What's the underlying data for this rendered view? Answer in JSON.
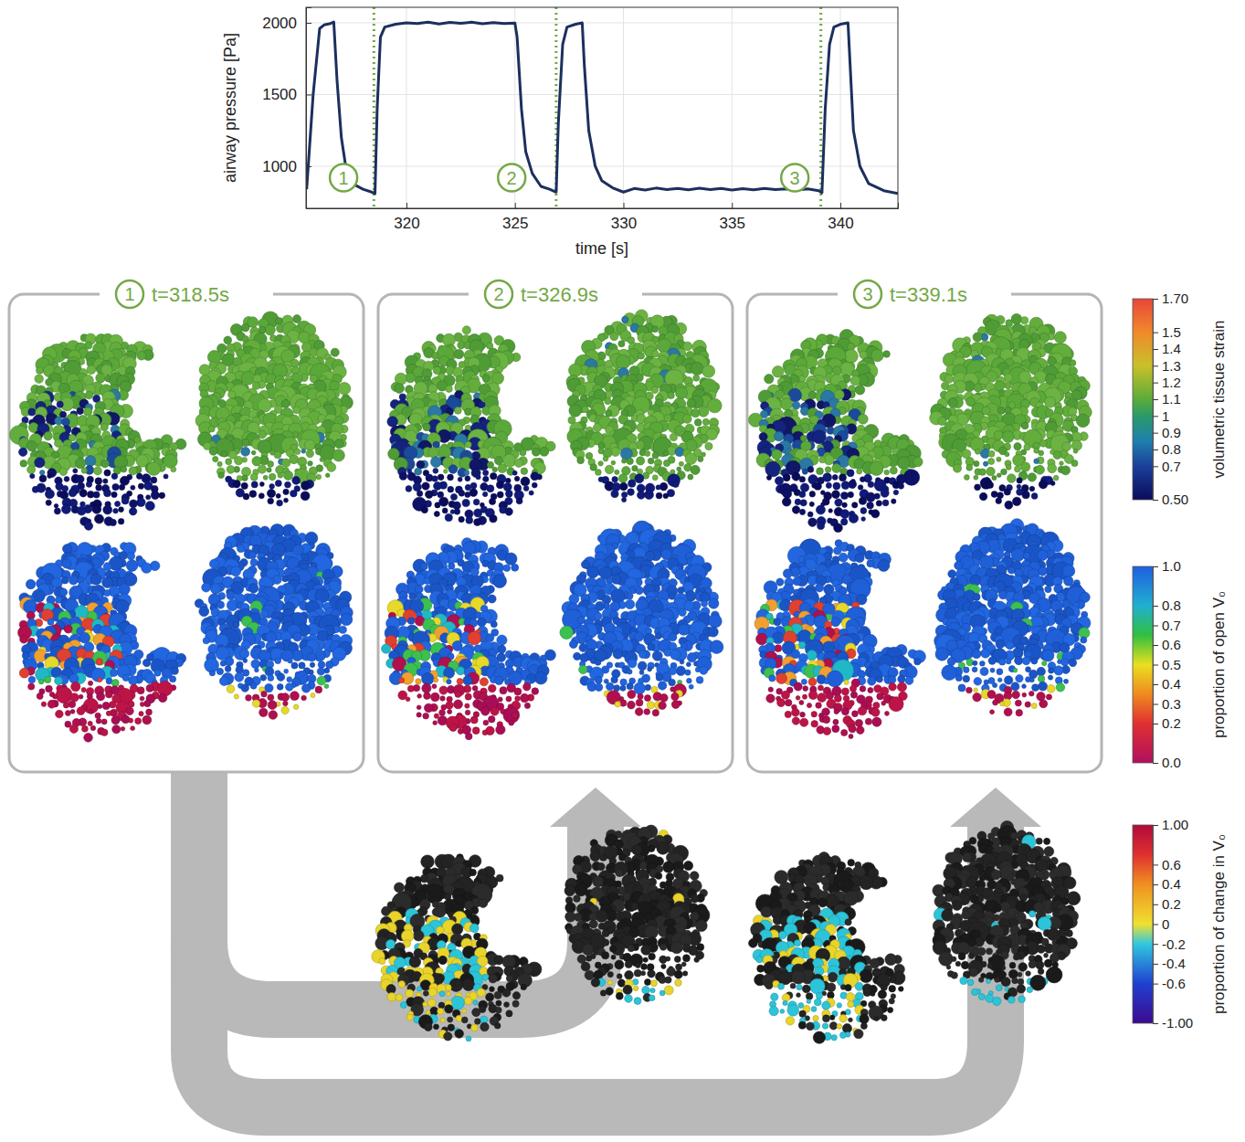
{
  "chart_data": {
    "type": "line",
    "x_label": "time [s]",
    "y_label": "airway pressure [Pa]",
    "x": [
      315.4,
      315.7,
      316.0,
      316.2,
      316.5,
      316.65,
      316.8,
      317.0,
      317.2,
      317.5,
      318.0,
      318.4,
      318.55,
      318.65,
      318.8,
      319.0,
      319.5,
      320.0,
      320.5,
      321.0,
      321.5,
      322.0,
      322.5,
      323.0,
      323.5,
      324.0,
      324.5,
      325.0,
      325.1,
      325.3,
      325.5,
      325.8,
      326.2,
      326.6,
      326.9,
      327.0,
      327.2,
      327.4,
      327.8,
      328.1,
      328.2,
      328.4,
      328.7,
      329.0,
      329.5,
      330.0,
      330.5,
      331.0,
      331.5,
      332.0,
      332.5,
      333.0,
      333.5,
      334.0,
      334.5,
      335.0,
      335.5,
      336.0,
      336.5,
      337.0,
      337.5,
      338.0,
      338.5,
      339.0,
      339.15,
      339.3,
      339.5,
      339.7,
      340.0,
      340.35,
      340.45,
      340.6,
      340.9,
      341.3,
      342.0,
      342.65
    ],
    "series": [
      {
        "name": "airway pressure",
        "color": "#1c2f5e",
        "line_style": "solid",
        "values": [
          840,
          1500,
          1960,
          1985,
          1995,
          2005,
          1600,
          1200,
          1000,
          880,
          840,
          820,
          810,
          1400,
          1900,
          1970,
          1990,
          2000,
          1995,
          2005,
          1992,
          2003,
          1996,
          2004,
          1994,
          2002,
          1995,
          1998,
          1900,
          1400,
          1100,
          950,
          860,
          840,
          820,
          1300,
          1850,
          1970,
          1990,
          2000,
          1700,
          1250,
          1000,
          900,
          850,
          820,
          845,
          835,
          848,
          838,
          846,
          836,
          847,
          837,
          845,
          835,
          844,
          836,
          846,
          838,
          843,
          835,
          842,
          830,
          815,
          1400,
          1850,
          1970,
          1990,
          2000,
          1700,
          1250,
          1000,
          880,
          830,
          810
        ]
      }
    ],
    "xlim": [
      315.37,
      342.65
    ],
    "ylim": [
      707,
      2108
    ],
    "xticks": [
      320,
      325,
      330,
      335,
      340
    ],
    "yticks": [
      1000,
      1500,
      2000
    ],
    "grid": true,
    "vlines": [
      318.5,
      326.9,
      339.1
    ],
    "annotations": [
      {
        "text": "1",
        "x": 317.1,
        "y": 920
      },
      {
        "text": "2",
        "x": 324.85,
        "y": 920
      },
      {
        "text": "3",
        "x": 337.9,
        "y": 920
      }
    ]
  },
  "panels": [
    {
      "label": "1",
      "title": "t=318.5s"
    },
    {
      "label": "2",
      "title": "t=326.9s"
    },
    {
      "label": "3",
      "title": "t=339.1s"
    }
  ],
  "colorbars": [
    {
      "label": "volumetric tissue strain",
      "range": [
        0.5,
        1.7
      ],
      "ticks": [
        {
          "value": 1.7,
          "label": "1.70"
        },
        1.5,
        1.4,
        1.3,
        1.2,
        1.1,
        1,
        0.9,
        0.8,
        0.7,
        {
          "value": 0.5,
          "label": "0.50"
        }
      ]
    },
    {
      "label": "proportion of open V₀",
      "range": [
        0,
        1
      ],
      "ticks": [
        {
          "value": 1,
          "label": "1.0"
        },
        0.8,
        0.7,
        0.6,
        0.5,
        0.4,
        0.3,
        0.2,
        {
          "value": 0,
          "label": "0.0"
        }
      ]
    },
    {
      "label": "proportion of change in V₀",
      "range": [
        -1,
        1
      ],
      "ticks": [
        {
          "value": 1,
          "label": "1.00"
        },
        0.6,
        0.4,
        0.2,
        0,
        -0.2,
        -0.4,
        -0.6,
        {
          "value": -1,
          "label": "-1.00"
        }
      ]
    }
  ]
}
